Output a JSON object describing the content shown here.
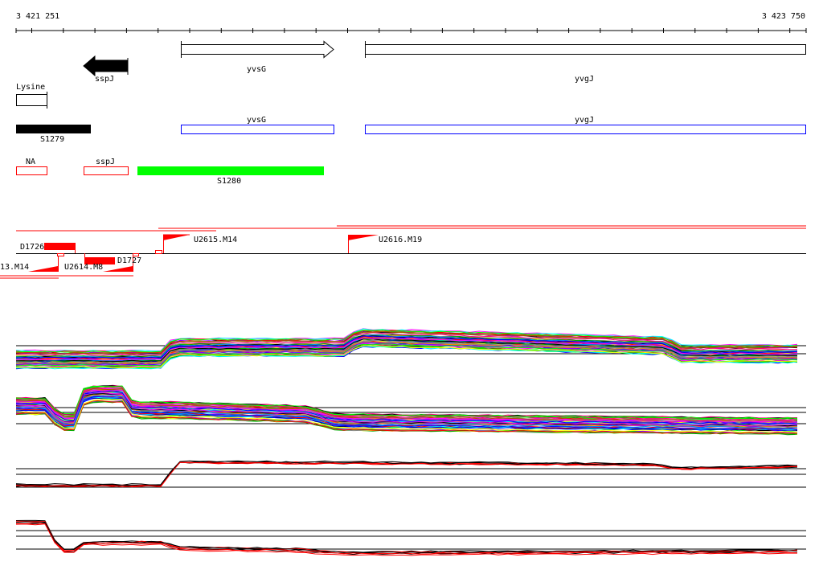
{
  "ruler": {
    "start_label": "3 421 251",
    "end_label": "3 423 750"
  },
  "genes": [
    {
      "name": "sspJ",
      "strand": "-"
    },
    {
      "name": "yvsG",
      "strand": "+"
    },
    {
      "name": "yvgJ",
      "strand": "+"
    }
  ],
  "terminator": {
    "label": "Lysine"
  },
  "segments": [
    {
      "label": "S1279",
      "color": "#000000"
    },
    {
      "label": "yvsG",
      "color": "#0000ff"
    },
    {
      "label": "yvgJ",
      "color": "#0000ff"
    }
  ],
  "annotations": [
    {
      "label": "NA",
      "color": "#ff0000"
    },
    {
      "label": "sspJ",
      "color": "#ff0000"
    },
    {
      "label": "S1280",
      "color": "#00ff00"
    }
  ],
  "transcripts": [
    {
      "label": "D1726"
    },
    {
      "label": "U2615.M14"
    },
    {
      "label": "U2616.M19"
    },
    {
      "label": "13.M14"
    },
    {
      "label": "U2614.M8"
    },
    {
      "label": "D1727"
    }
  ],
  "colors": {
    "accent": "#ff0000",
    "gene_border": "#0000ff",
    "s1280": "#00ff00"
  }
}
